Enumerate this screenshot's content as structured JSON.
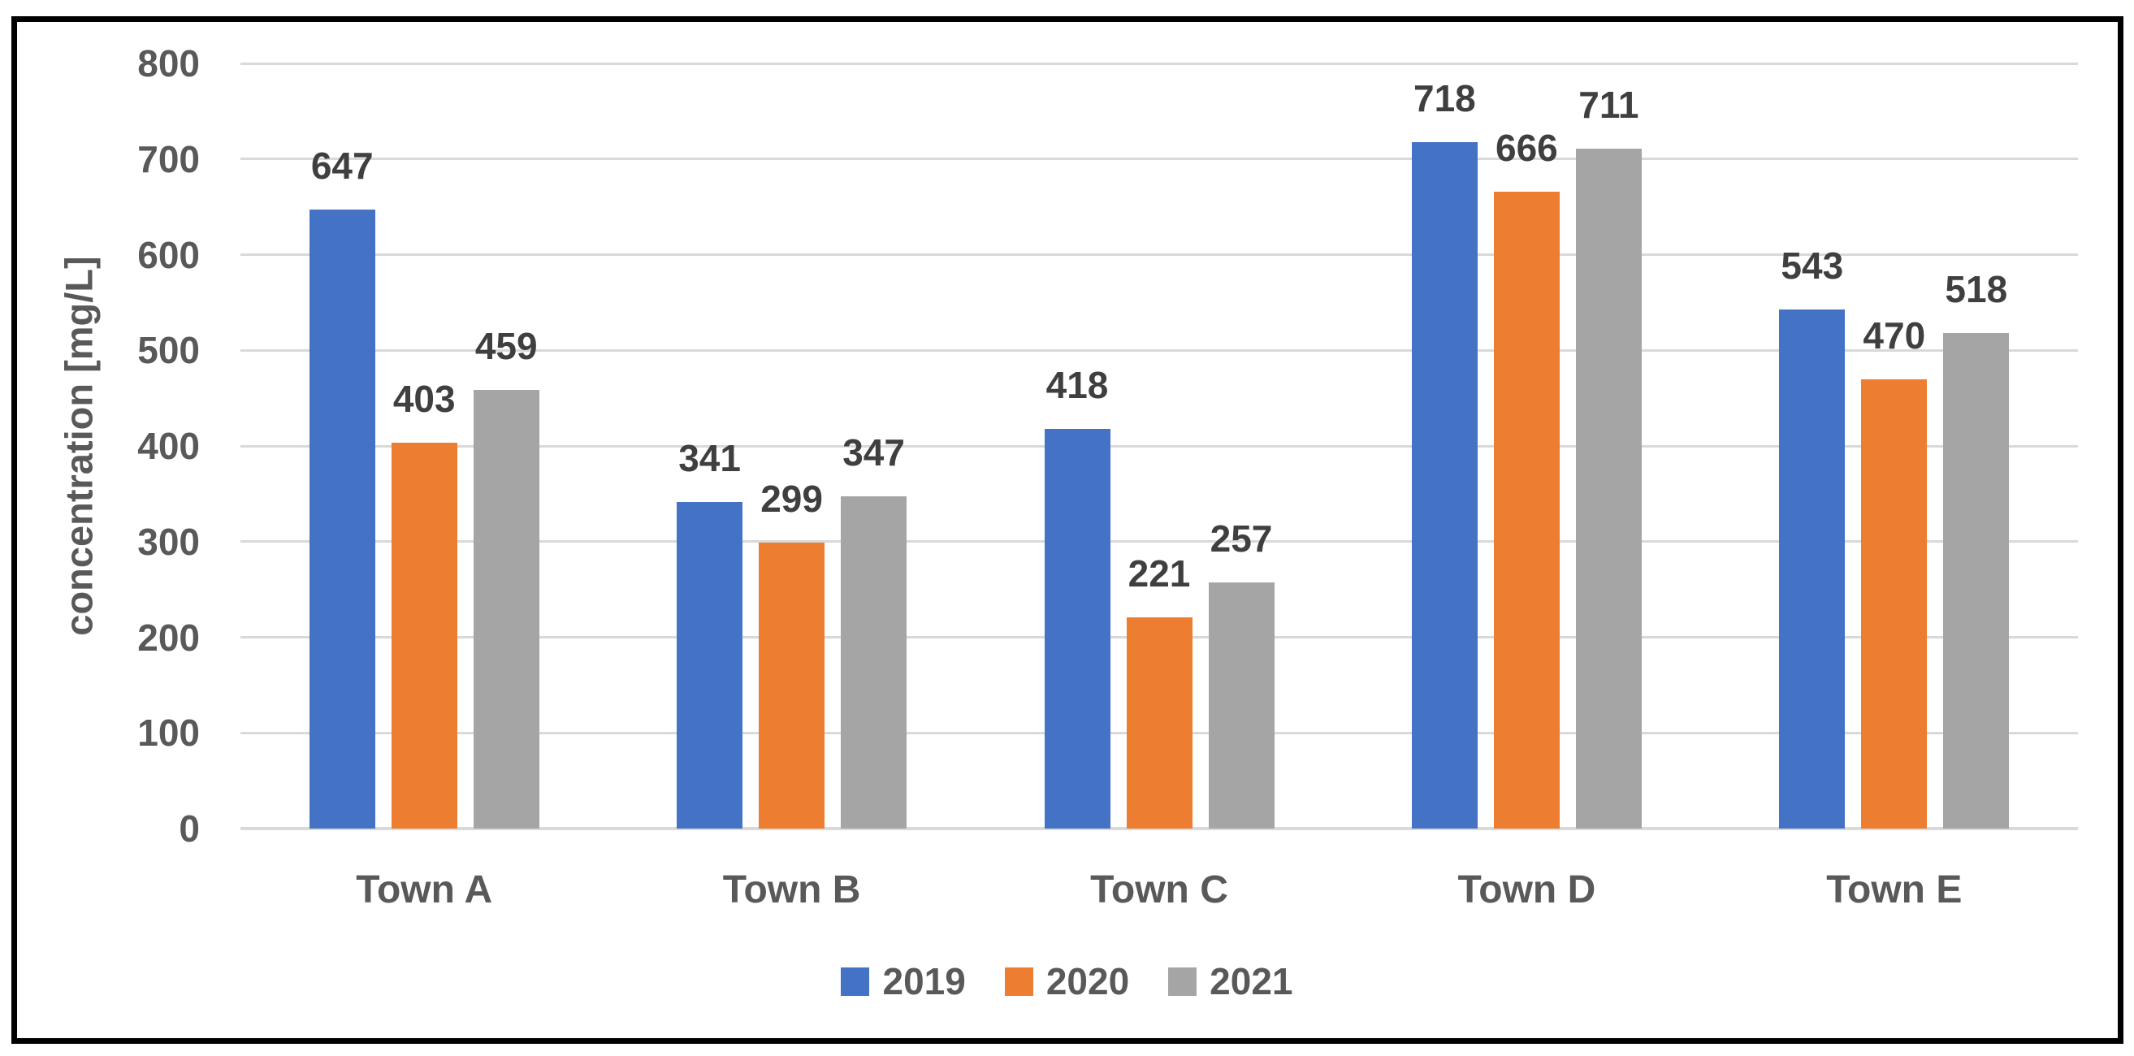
{
  "chart_data": {
    "type": "bar",
    "title": "",
    "xlabel": "",
    "ylabel": "concentration [mg/L]",
    "categories": [
      "Town A",
      "Town B",
      "Town C",
      "Town D",
      "Town E"
    ],
    "series": [
      {
        "name": "2019",
        "color": "#4472C4",
        "values": [
          647,
          341,
          418,
          718,
          543
        ]
      },
      {
        "name": "2020",
        "color": "#ED7D31",
        "values": [
          403,
          299,
          221,
          666,
          470
        ]
      },
      {
        "name": "2021",
        "color": "#A5A5A5",
        "values": [
          459,
          347,
          257,
          711,
          518
        ]
      }
    ],
    "ylim": [
      0,
      800
    ],
    "ytick_interval": 100,
    "yticks": [
      0,
      100,
      200,
      300,
      400,
      500,
      600,
      700,
      800
    ],
    "grid": "horizontal",
    "gridline_color": "#D9D9D9",
    "axis_text_color": "#595959",
    "data_label_color": "#3F3F3F",
    "data_labels": true,
    "legend_position": "bottom-center",
    "frame_border_color": "#000000",
    "background_color": "#FFFFFF"
  }
}
